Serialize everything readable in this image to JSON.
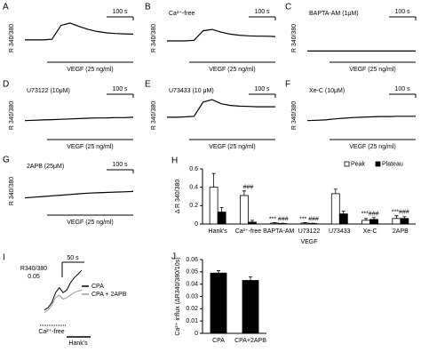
{
  "chart_data": [
    {
      "type": "trace",
      "panel": "A",
      "ylabel": "R 340/380",
      "scale_bar": "100 s",
      "stimulus": "VEGF (25 ng/ml)",
      "x": [
        0,
        30,
        60,
        90,
        120,
        150,
        180,
        210,
        240,
        270,
        300,
        330,
        360
      ],
      "xlim": [
        0,
        360
      ],
      "ylim": [
        0,
        1
      ],
      "series": [
        {
          "color": "#000000",
          "values": [
            0.45,
            0.45,
            0.45,
            0.47,
            0.88,
            0.95,
            0.85,
            0.76,
            0.7,
            0.66,
            0.64,
            0.63,
            0.62
          ]
        }
      ]
    },
    {
      "type": "trace",
      "panel": "B",
      "title": "Ca²⁺-free",
      "ylabel": "R 340/380",
      "scale_bar": "100 s",
      "stimulus": "VEGF (25 ng/ml)",
      "x": [
        0,
        30,
        60,
        90,
        120,
        150,
        180,
        210,
        240,
        270,
        300,
        330,
        360
      ],
      "xlim": [
        0,
        360
      ],
      "ylim": [
        0,
        1
      ],
      "series": [
        {
          "color": "#000000",
          "values": [
            0.42,
            0.42,
            0.42,
            0.44,
            0.72,
            0.76,
            0.68,
            0.62,
            0.59,
            0.57,
            0.56,
            0.56,
            0.55
          ]
        }
      ]
    },
    {
      "type": "trace",
      "panel": "C",
      "title": "BAPTA-AM (1μM)",
      "ylabel": "R 340/380",
      "scale_bar": "100 s",
      "stimulus": "VEGF (25 ng/ml)",
      "x": [
        0,
        30,
        60,
        90,
        120,
        150,
        180,
        210,
        240,
        270,
        300,
        330,
        360
      ],
      "xlim": [
        0,
        360
      ],
      "ylim": [
        0,
        1
      ],
      "series": [
        {
          "color": "#000000",
          "values": [
            0.12,
            0.12,
            0.12,
            0.12,
            0.12,
            0.12,
            0.12,
            0.12,
            0.12,
            0.12,
            0.12,
            0.12,
            0.12
          ]
        }
      ]
    },
    {
      "type": "trace",
      "panel": "D",
      "title": "U73122 (10μM)",
      "ylabel": "R 340/380",
      "scale_bar": "100 s",
      "stimulus": "VEGF (25 ng/ml)",
      "x": [
        0,
        30,
        60,
        90,
        120,
        150,
        180,
        210,
        240,
        270,
        300,
        330,
        360
      ],
      "xlim": [
        0,
        360
      ],
      "ylim": [
        0,
        1
      ],
      "series": [
        {
          "color": "#000000",
          "values": [
            0.35,
            0.36,
            0.37,
            0.38,
            0.39,
            0.4,
            0.41,
            0.42,
            0.43,
            0.43,
            0.44,
            0.44,
            0.45
          ]
        }
      ]
    },
    {
      "type": "trace",
      "panel": "E",
      "title": "U73433 (10 μM)",
      "ylabel": "R 340/380",
      "scale_bar": "100 s",
      "stimulus": "VEGF (25 ng/ml)",
      "x": [
        0,
        30,
        60,
        90,
        120,
        150,
        180,
        210,
        240,
        270,
        300,
        330,
        360
      ],
      "xlim": [
        0,
        360
      ],
      "ylim": [
        0,
        1
      ],
      "series": [
        {
          "color": "#000000",
          "values": [
            0.45,
            0.45,
            0.46,
            0.48,
            0.9,
            0.97,
            0.85,
            0.8,
            0.78,
            0.77,
            0.76,
            0.76,
            0.76
          ]
        }
      ]
    },
    {
      "type": "trace",
      "panel": "F",
      "title": "Xe-C (10μM)",
      "ylabel": "R 340/380",
      "scale_bar": "100 s",
      "stimulus": "VEGF (25 ng/ml)",
      "x": [
        0,
        30,
        60,
        90,
        120,
        150,
        180,
        210,
        240,
        270,
        300,
        330,
        360
      ],
      "xlim": [
        0,
        360
      ],
      "ylim": [
        0,
        1
      ],
      "series": [
        {
          "color": "#000000",
          "values": [
            0.35,
            0.36,
            0.37,
            0.4,
            0.42,
            0.44,
            0.45,
            0.46,
            0.47,
            0.47,
            0.48,
            0.48,
            0.48
          ]
        }
      ]
    },
    {
      "type": "trace",
      "panel": "G",
      "title": "2APB (25μM)",
      "ylabel": "R 340/380",
      "scale_bar": "100 s",
      "stimulus": "VEGF (25 ng/ml)",
      "x": [
        0,
        30,
        60,
        90,
        120,
        150,
        180,
        210,
        240,
        270,
        300,
        330,
        360
      ],
      "xlim": [
        0,
        360
      ],
      "ylim": [
        0,
        1
      ],
      "series": [
        {
          "color": "#000000",
          "values": [
            0.3,
            0.32,
            0.34,
            0.36,
            0.38,
            0.4,
            0.42,
            0.44,
            0.45,
            0.46,
            0.47,
            0.48,
            0.49
          ]
        }
      ]
    },
    {
      "type": "bar",
      "panel": "H",
      "ylabel": "Δ R 340/380",
      "xlabel": "VEGF",
      "categories": [
        "Hank's",
        "Ca²⁺-free",
        "BAPTA-AM",
        "U73122",
        "U73433",
        "Xe-C",
        "2APB"
      ],
      "ylim": [
        0,
        0.6
      ],
      "yticks": [
        0,
        0.2,
        0.4,
        0.6
      ],
      "legend": "top-right",
      "series": [
        {
          "name": "Peak",
          "color": "#ffffff",
          "values": [
            0.4,
            0.31,
            0.01,
            0.01,
            0.33,
            0.04,
            0.06
          ],
          "errors": [
            0.15,
            0.05,
            0.005,
            0.005,
            0.05,
            0.02,
            0.03
          ]
        },
        {
          "name": "Plateau",
          "color": "#000000",
          "values": [
            0.13,
            0.02,
            0.005,
            0.005,
            0.11,
            0.05,
            0.06
          ],
          "errors": [
            0.05,
            0.02,
            0.003,
            0.003,
            0.03,
            0.02,
            0.02
          ]
        }
      ],
      "annotations": [
        null,
        "###",
        "*** ###",
        "*** ###",
        null,
        "***###",
        "***###"
      ]
    },
    {
      "type": "trace-scaled",
      "panel": "I",
      "scale_bar": "50 s",
      "scale_bar_y": [
        "R340/380",
        "0.05"
      ],
      "solutions": [
        "Ca²⁺-free",
        "Hank's"
      ],
      "x": [
        0,
        10,
        20,
        30,
        40,
        50,
        60,
        70,
        80,
        90,
        100
      ],
      "xlim": [
        0,
        100
      ],
      "ylim": [
        0,
        1
      ],
      "series": [
        {
          "name": "CPA",
          "color": "#000000",
          "values": [
            0.2,
            0.25,
            0.35,
            0.55,
            0.65,
            0.55,
            0.6,
            0.75,
            0.85,
            0.92,
            1.0
          ]
        },
        {
          "name": "CPA + 2APB",
          "color": "#999999",
          "values": [
            0.15,
            0.2,
            0.3,
            0.45,
            0.5,
            0.42,
            0.45,
            0.5,
            0.55,
            0.58,
            0.6
          ]
        }
      ]
    },
    {
      "type": "bar",
      "panel": "J",
      "ylabel": "Ca²⁺ influx (ΔR340/380/10s)",
      "categories": [
        "CPA",
        "CPA+2APB"
      ],
      "ylim": [
        0,
        0.06
      ],
      "yticks": [
        0,
        0.01,
        0.02,
        0.03,
        0.04,
        0.05,
        0.06
      ],
      "series": [
        {
          "color": "#000000",
          "values": [
            0.049,
            0.043
          ],
          "errors": [
            0.002,
            0.003
          ]
        }
      ]
    }
  ]
}
